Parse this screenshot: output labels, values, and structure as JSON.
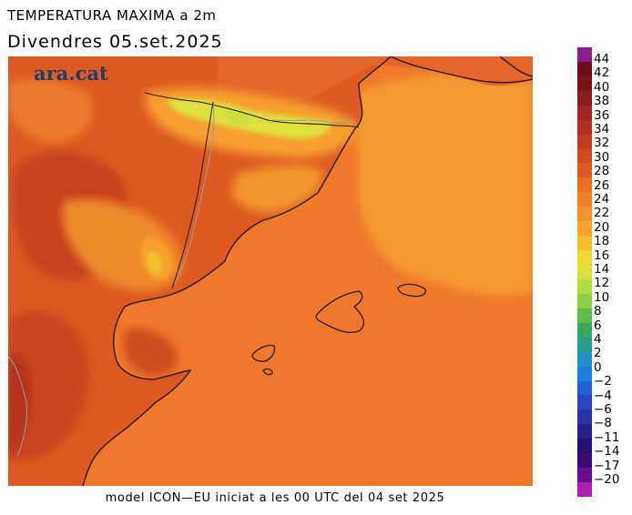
{
  "title": "TEMPERATURA MAXIMA a 2m",
  "date_label": "Divendres  05.set.2025",
  "brand": "ara.cat",
  "footer": "model ICON—EU iniciat a les 00 UTC del 04 set 2025",
  "legend": {
    "labels": [
      "44",
      "42",
      "40",
      "38",
      "36",
      "34",
      "32",
      "30",
      "28",
      "26",
      "24",
      "22",
      "20",
      "18",
      "16",
      "14",
      "12",
      "10",
      "8",
      "6",
      "4",
      "2",
      "0",
      "−2",
      "−4",
      "−6",
      "−8",
      "−11",
      "−14",
      "−17",
      "−20"
    ],
    "colors": [
      "#8b1a8b",
      "#6b0f1a",
      "#7a1414",
      "#8e1b1b",
      "#a3241e",
      "#b52f1f",
      "#c33b1f",
      "#d44a1f",
      "#e25a20",
      "#ec6d22",
      "#f38024",
      "#f6922a",
      "#f8a52e",
      "#f7bd2f",
      "#f1d72f",
      "#d7e23a",
      "#b2dd3d",
      "#88d045",
      "#5cbd4b",
      "#3aa85a",
      "#2a9e8c",
      "#1e92c8",
      "#1b7fe0",
      "#2060d8",
      "#2748c2",
      "#2a34a8",
      "#281f8c",
      "#241070",
      "#3c0a74",
      "#6d0b8a",
      "#b01fb3"
    ]
  },
  "map_colors": {
    "sea": "#f0782a",
    "land_hot": "#de5a22",
    "land_hotter": "#c8401e",
    "land_warm": "#ec7c2a",
    "mountain_mild": "#f5a02e",
    "mountain_cool": "#dfe03c",
    "outer_sea": "#f49a30",
    "coast": "#2a1a14",
    "border": "#9b9b9b"
  }
}
